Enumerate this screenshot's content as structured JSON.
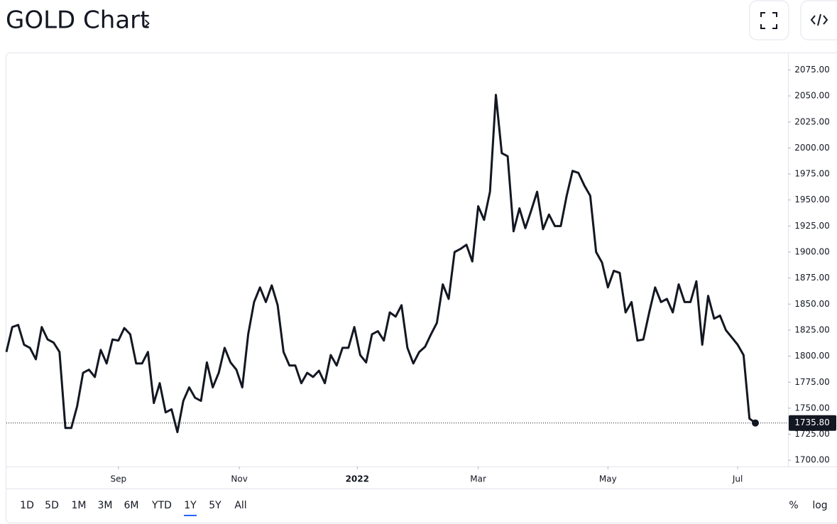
{
  "header": {
    "title": "GOLD Chart",
    "chevron": "›"
  },
  "chart_data": {
    "type": "line",
    "color": "#131722",
    "values": [
      1804,
      1828,
      1830,
      1811,
      1808,
      1797,
      1828,
      1816,
      1813,
      1804,
      1731,
      1731,
      1752,
      1784,
      1787,
      1780,
      1806,
      1793,
      1816,
      1815,
      1827,
      1821,
      1793,
      1793,
      1804,
      1755,
      1774,
      1746,
      1749,
      1727,
      1757,
      1770,
      1760,
      1757,
      1794,
      1770,
      1784,
      1808,
      1794,
      1787,
      1770,
      1821,
      1852,
      1866,
      1852,
      1868,
      1849,
      1804,
      1791,
      1791,
      1774,
      1784,
      1780,
      1786,
      1774,
      1801,
      1791,
      1808,
      1808,
      1828,
      1801,
      1794,
      1821,
      1824,
      1815,
      1842,
      1838,
      1849,
      1808,
      1793,
      1804,
      1809,
      1821,
      1832,
      1869,
      1855,
      1900,
      1903,
      1907,
      1891,
      1944,
      1931,
      1958,
      2051,
      1995,
      1992,
      1920,
      1942,
      1923,
      1940,
      1958,
      1922,
      1936,
      1925,
      1925,
      1954,
      1978,
      1976,
      1964,
      1954,
      1900,
      1890,
      1866,
      1882,
      1880,
      1842,
      1852,
      1815,
      1816,
      1842,
      1866,
      1852,
      1855,
      1842,
      1869,
      1852,
      1852,
      1872,
      1811,
      1858,
      1836,
      1839,
      1825,
      1818,
      1811,
      1801,
      1740,
      1735.8
    ],
    "ylim": [
      1694,
      2091
    ],
    "yticks": [
      {
        "value": 1700,
        "label": "1700.00"
      },
      {
        "value": 1725,
        "label": "1725.00"
      },
      {
        "value": 1750,
        "label": "1750.00"
      },
      {
        "value": 1775,
        "label": "1775.00"
      },
      {
        "value": 1800,
        "label": "1800.00"
      },
      {
        "value": 1825,
        "label": "1825.00"
      },
      {
        "value": 1850,
        "label": "1850.00"
      },
      {
        "value": 1875,
        "label": "1875.00"
      },
      {
        "value": 1900,
        "label": "1900.00"
      },
      {
        "value": 1925,
        "label": "1925.00"
      },
      {
        "value": 1950,
        "label": "1950.00"
      },
      {
        "value": 1975,
        "label": "1975.00"
      },
      {
        "value": 2000,
        "label": "2000.00"
      },
      {
        "value": 2025,
        "label": "2025.00"
      },
      {
        "value": 2050,
        "label": "2050.00"
      },
      {
        "value": 2075,
        "label": "2075.00"
      }
    ],
    "xticks": [
      {
        "value": 19,
        "label": "Sep"
      },
      {
        "value": 39.5,
        "label": "Nov"
      },
      {
        "value": 59.5,
        "label": "2022"
      },
      {
        "value": 80,
        "label": "Mar"
      },
      {
        "value": 102,
        "label": "May"
      },
      {
        "value": 124,
        "label": "Jul"
      }
    ],
    "last_price": {
      "value": 1735.8,
      "label": "1735.80"
    }
  },
  "range_buttons": [
    "1D",
    "5D",
    "1M",
    "3M",
    "6M",
    "YTD",
    "1Y",
    "5Y",
    "All"
  ],
  "selected_range_index": 6,
  "scale_buttons": [
    "%",
    "log"
  ]
}
